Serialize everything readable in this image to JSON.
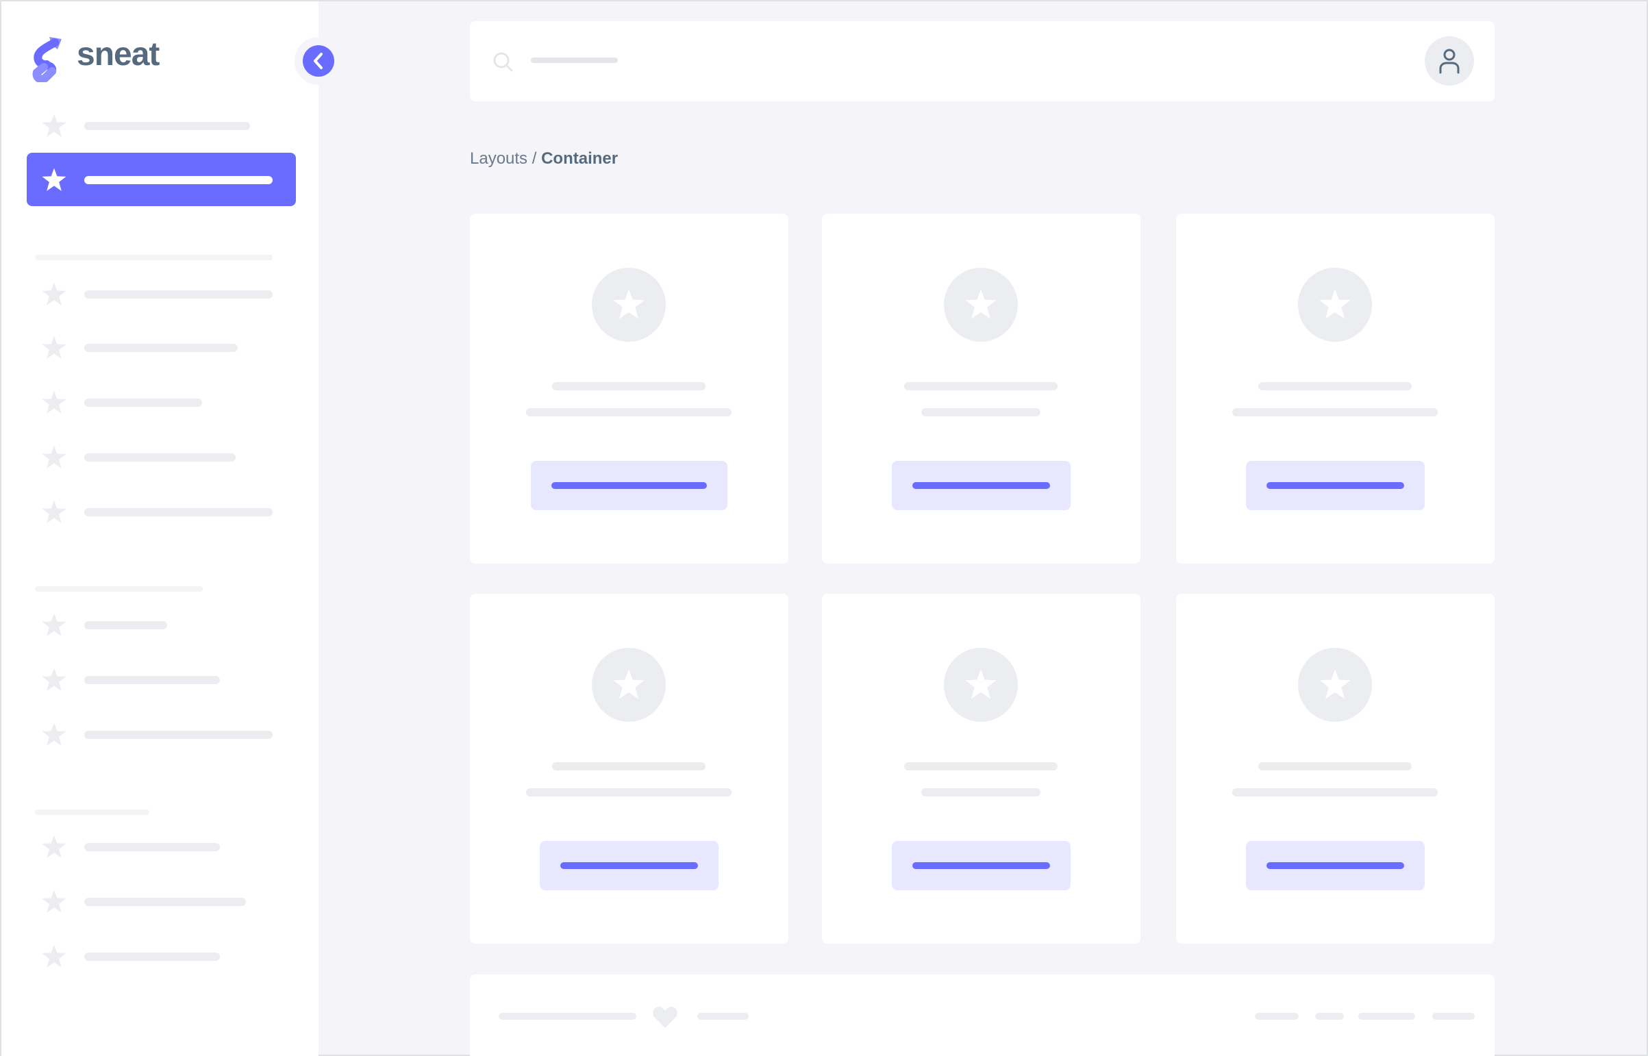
{
  "brand": {
    "name": "sneat",
    "logo_colors": [
      "#696cff",
      "#8c8eff"
    ]
  },
  "colors": {
    "primary": "#696cff",
    "primary_light": "#e7e7ff",
    "skeleton": "#ebedf0",
    "background": "#f5f5f9",
    "text": "#566a7f"
  },
  "sidebar": {
    "toggle_icon": "chevron-left-icon",
    "items": [
      {
        "icon": "star-icon",
        "active": false
      },
      {
        "icon": "star-icon",
        "active": true
      },
      {
        "icon": "star-icon",
        "active": false
      },
      {
        "icon": "star-icon",
        "active": false
      },
      {
        "icon": "star-icon",
        "active": false
      },
      {
        "icon": "star-icon",
        "active": false
      },
      {
        "icon": "star-icon",
        "active": false
      },
      {
        "icon": "star-icon",
        "active": false
      },
      {
        "icon": "star-icon",
        "active": false
      },
      {
        "icon": "star-icon",
        "active": false
      },
      {
        "icon": "star-icon",
        "active": false
      },
      {
        "icon": "star-icon",
        "active": false
      },
      {
        "icon": "star-icon",
        "active": false
      }
    ]
  },
  "topbar": {
    "search_icon": "search-icon",
    "avatar_icon": "user-icon"
  },
  "breadcrumb": {
    "parent": "Layouts",
    "separator": "/",
    "current": "Container"
  },
  "cards": [
    {
      "icon": "star-icon"
    },
    {
      "icon": "star-icon"
    },
    {
      "icon": "star-icon"
    },
    {
      "icon": "star-icon"
    },
    {
      "icon": "star-icon"
    },
    {
      "icon": "star-icon"
    }
  ],
  "footer": {
    "icon": "heart-icon"
  }
}
